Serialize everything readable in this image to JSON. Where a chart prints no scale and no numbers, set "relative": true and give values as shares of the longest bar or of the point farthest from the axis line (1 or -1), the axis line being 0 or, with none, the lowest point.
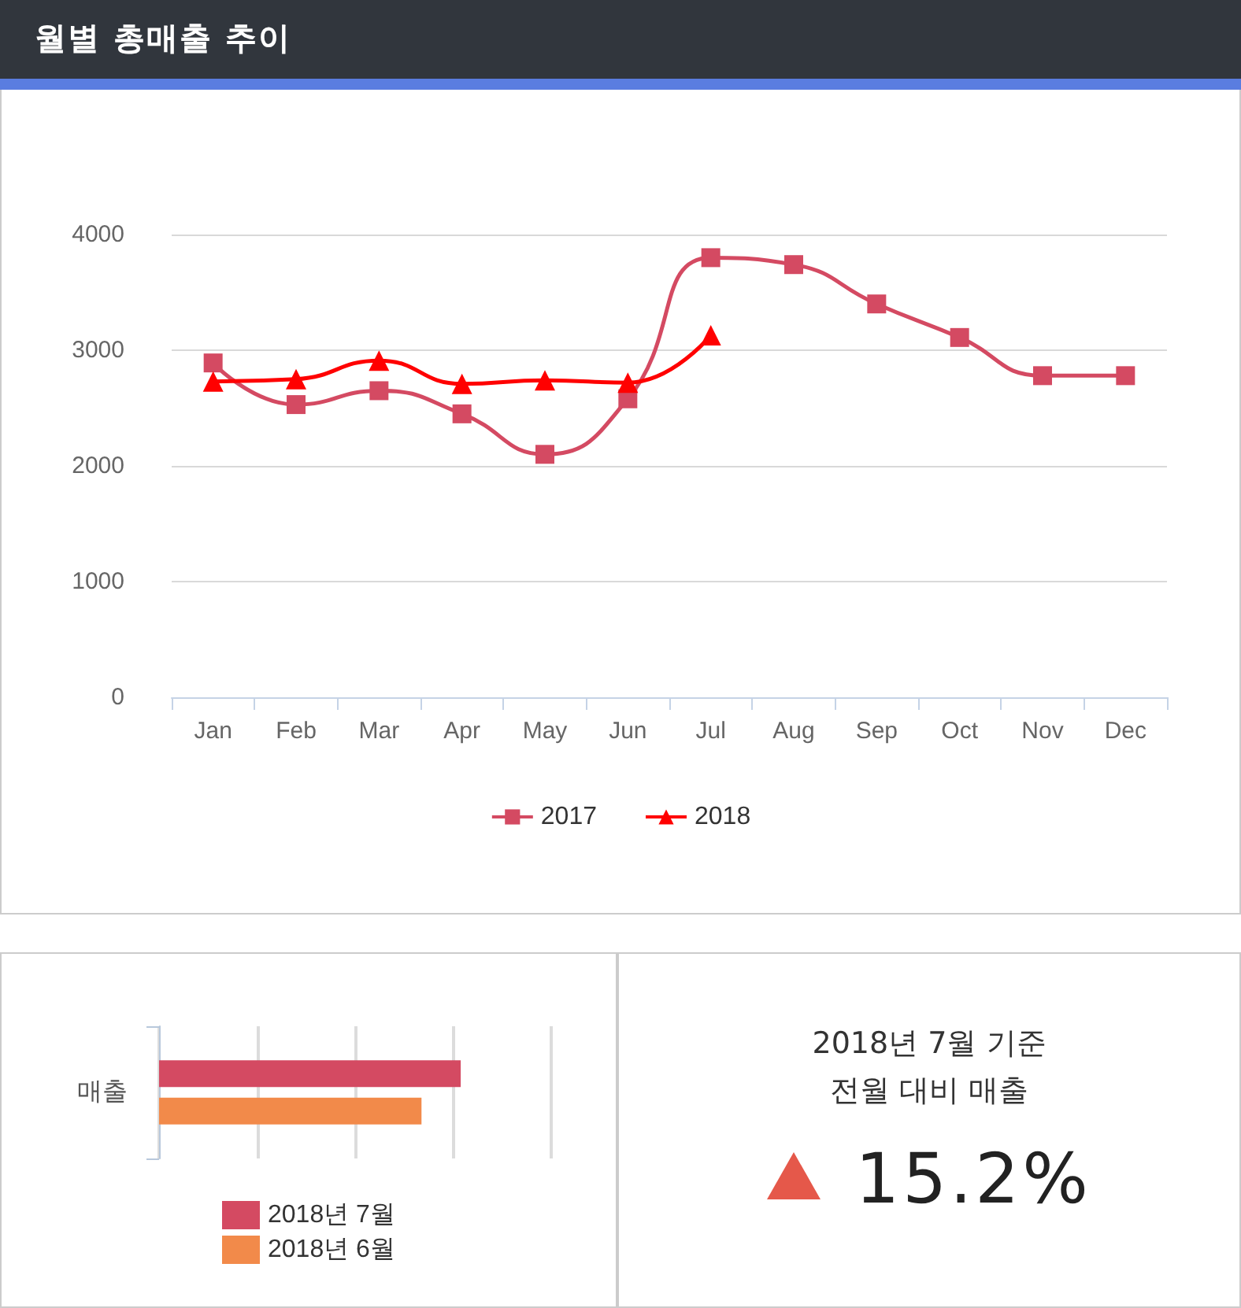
{
  "chart_data": [
    {
      "type": "line",
      "title": "월별 총매출 추이",
      "categories": [
        "Jan",
        "Feb",
        "Mar",
        "Apr",
        "May",
        "Jun",
        "Jul",
        "Aug",
        "Sep",
        "Oct",
        "Nov",
        "Dec"
      ],
      "series": [
        {
          "name": "2017",
          "color": "#d44a62",
          "marker": "square",
          "values": [
            2890,
            2530,
            2650,
            2450,
            2100,
            2580,
            3800,
            3740,
            3400,
            3110,
            2780,
            2780
          ]
        },
        {
          "name": "2018",
          "color": "#ff0000",
          "marker": "triangle",
          "values": [
            2730,
            2750,
            2910,
            2710,
            2740,
            2720,
            3130,
            null,
            null,
            null,
            null,
            null
          ]
        }
      ],
      "ylim": [
        0,
        4000
      ],
      "yticks": [
        0,
        1000,
        2000,
        3000,
        4000
      ],
      "grid": "y",
      "legend": "bottom",
      "line_style": "solid"
    },
    {
      "type": "bar",
      "orientation": "horizontal",
      "relative": true,
      "categories": [
        "매출"
      ],
      "series": [
        {
          "name": "2018년 7월",
          "color": "#d44a62",
          "values": [
            1
          ]
        },
        {
          "name": "2018년 6월",
          "color": "#f28a4a",
          "values": [
            0.87
          ]
        }
      ],
      "grid": "x",
      "legend": "bottom",
      "tick_labels": "y"
    },
    {
      "type": "other",
      "title": "2018년 7월 기준",
      "subtitle": "전월 대비 매출",
      "annotations": [
        "15.2%"
      ]
    }
  ]
}
